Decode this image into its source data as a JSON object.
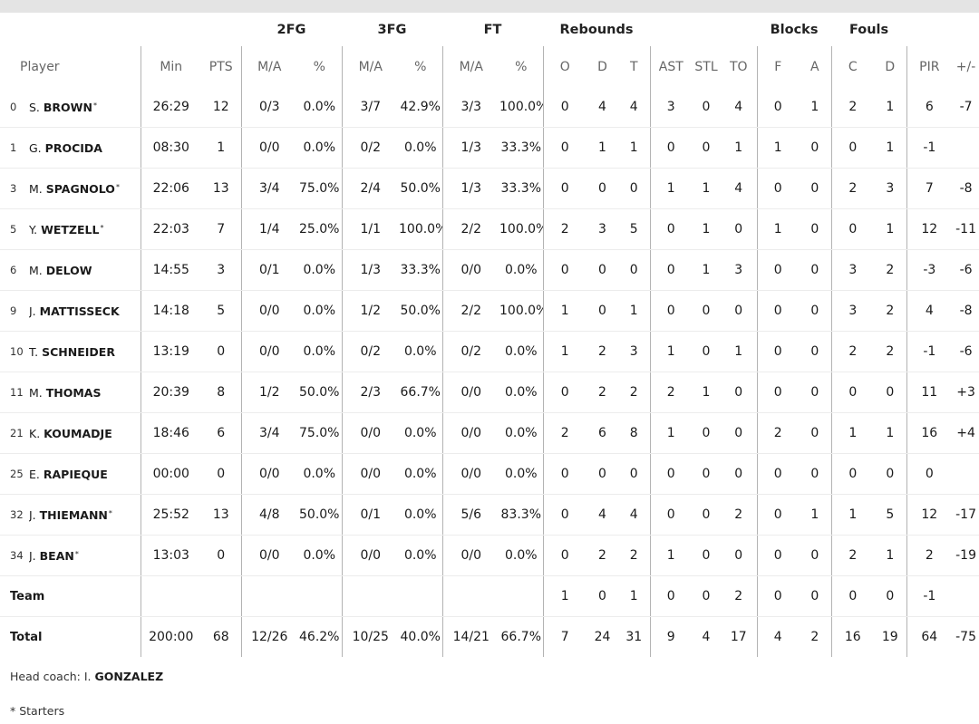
{
  "group_headers": {
    "fg2": "2FG",
    "fg3": "3FG",
    "ft": "FT",
    "rebounds": "Rebounds",
    "blocks": "Blocks",
    "fouls": "Fouls"
  },
  "column_headers": {
    "player": "Player",
    "min": "Min",
    "pts": "PTS",
    "fg2_ma": "M/A",
    "fg2_pct": "%",
    "fg3_ma": "M/A",
    "fg3_pct": "%",
    "ft_ma": "M/A",
    "ft_pct": "%",
    "reb_o": "O",
    "reb_d": "D",
    "reb_t": "T",
    "ast": "AST",
    "stl": "STL",
    "to": "TO",
    "blk_f": "F",
    "blk_a": "A",
    "foul_c": "C",
    "foul_d": "D",
    "pir": "PIR",
    "pm": "+/-"
  },
  "players": [
    {
      "no": "0",
      "initial": "S.",
      "last": "BROWN",
      "star": "*",
      "min": "26:29",
      "pts": "12",
      "fg2": "0/3",
      "fg2p": "0.0%",
      "fg3": "3/7",
      "fg3p": "42.9%",
      "ft": "3/3",
      "ftp": "100.0%",
      "ro": "0",
      "rd": "4",
      "rt": "4",
      "ast": "3",
      "stl": "0",
      "to": "4",
      "bf": "0",
      "ba": "1",
      "fc": "2",
      "fd": "1",
      "pir": "6",
      "pm": "-7"
    },
    {
      "no": "1",
      "initial": "G.",
      "last": "PROCIDA",
      "star": "",
      "min": "08:30",
      "pts": "1",
      "fg2": "0/0",
      "fg2p": "0.0%",
      "fg3": "0/2",
      "fg3p": "0.0%",
      "ft": "1/3",
      "ftp": "33.3%",
      "ro": "0",
      "rd": "1",
      "rt": "1",
      "ast": "0",
      "stl": "0",
      "to": "1",
      "bf": "1",
      "ba": "0",
      "fc": "0",
      "fd": "1",
      "pir": "-1",
      "pm": ""
    },
    {
      "no": "3",
      "initial": "M.",
      "last": "SPAGNOLO",
      "star": "*",
      "min": "22:06",
      "pts": "13",
      "fg2": "3/4",
      "fg2p": "75.0%",
      "fg3": "2/4",
      "fg3p": "50.0%",
      "ft": "1/3",
      "ftp": "33.3%",
      "ro": "0",
      "rd": "0",
      "rt": "0",
      "ast": "1",
      "stl": "1",
      "to": "4",
      "bf": "0",
      "ba": "0",
      "fc": "2",
      "fd": "3",
      "pir": "7",
      "pm": "-8"
    },
    {
      "no": "5",
      "initial": "Y.",
      "last": "WETZELL",
      "star": "*",
      "min": "22:03",
      "pts": "7",
      "fg2": "1/4",
      "fg2p": "25.0%",
      "fg3": "1/1",
      "fg3p": "100.0%",
      "ft": "2/2",
      "ftp": "100.0%",
      "ro": "2",
      "rd": "3",
      "rt": "5",
      "ast": "0",
      "stl": "1",
      "to": "0",
      "bf": "1",
      "ba": "0",
      "fc": "0",
      "fd": "1",
      "pir": "12",
      "pm": "-11"
    },
    {
      "no": "6",
      "initial": "M.",
      "last": "DELOW",
      "star": "",
      "min": "14:55",
      "pts": "3",
      "fg2": "0/1",
      "fg2p": "0.0%",
      "fg3": "1/3",
      "fg3p": "33.3%",
      "ft": "0/0",
      "ftp": "0.0%",
      "ro": "0",
      "rd": "0",
      "rt": "0",
      "ast": "0",
      "stl": "1",
      "to": "3",
      "bf": "0",
      "ba": "0",
      "fc": "3",
      "fd": "2",
      "pir": "-3",
      "pm": "-6"
    },
    {
      "no": "9",
      "initial": "J.",
      "last": "MATTISSECK",
      "star": "",
      "min": "14:18",
      "pts": "5",
      "fg2": "0/0",
      "fg2p": "0.0%",
      "fg3": "1/2",
      "fg3p": "50.0%",
      "ft": "2/2",
      "ftp": "100.0%",
      "ro": "1",
      "rd": "0",
      "rt": "1",
      "ast": "0",
      "stl": "0",
      "to": "0",
      "bf": "0",
      "ba": "0",
      "fc": "3",
      "fd": "2",
      "pir": "4",
      "pm": "-8"
    },
    {
      "no": "10",
      "initial": "T.",
      "last": "SCHNEIDER",
      "star": "",
      "min": "13:19",
      "pts": "0",
      "fg2": "0/0",
      "fg2p": "0.0%",
      "fg3": "0/2",
      "fg3p": "0.0%",
      "ft": "0/2",
      "ftp": "0.0%",
      "ro": "1",
      "rd": "2",
      "rt": "3",
      "ast": "1",
      "stl": "0",
      "to": "1",
      "bf": "0",
      "ba": "0",
      "fc": "2",
      "fd": "2",
      "pir": "-1",
      "pm": "-6"
    },
    {
      "no": "11",
      "initial": "M.",
      "last": "THOMAS",
      "star": "",
      "min": "20:39",
      "pts": "8",
      "fg2": "1/2",
      "fg2p": "50.0%",
      "fg3": "2/3",
      "fg3p": "66.7%",
      "ft": "0/0",
      "ftp": "0.0%",
      "ro": "0",
      "rd": "2",
      "rt": "2",
      "ast": "2",
      "stl": "1",
      "to": "0",
      "bf": "0",
      "ba": "0",
      "fc": "0",
      "fd": "0",
      "pir": "11",
      "pm": "+3"
    },
    {
      "no": "21",
      "initial": "K.",
      "last": "KOUMADJE",
      "star": "",
      "min": "18:46",
      "pts": "6",
      "fg2": "3/4",
      "fg2p": "75.0%",
      "fg3": "0/0",
      "fg3p": "0.0%",
      "ft": "0/0",
      "ftp": "0.0%",
      "ro": "2",
      "rd": "6",
      "rt": "8",
      "ast": "1",
      "stl": "0",
      "to": "0",
      "bf": "2",
      "ba": "0",
      "fc": "1",
      "fd": "1",
      "pir": "16",
      "pm": "+4"
    },
    {
      "no": "25",
      "initial": "E.",
      "last": "RAPIEQUE",
      "star": "",
      "min": "00:00",
      "pts": "0",
      "fg2": "0/0",
      "fg2p": "0.0%",
      "fg3": "0/0",
      "fg3p": "0.0%",
      "ft": "0/0",
      "ftp": "0.0%",
      "ro": "0",
      "rd": "0",
      "rt": "0",
      "ast": "0",
      "stl": "0",
      "to": "0",
      "bf": "0",
      "ba": "0",
      "fc": "0",
      "fd": "0",
      "pir": "0",
      "pm": ""
    },
    {
      "no": "32",
      "initial": "J.",
      "last": "THIEMANN",
      "star": "*",
      "min": "25:52",
      "pts": "13",
      "fg2": "4/8",
      "fg2p": "50.0%",
      "fg3": "0/1",
      "fg3p": "0.0%",
      "ft": "5/6",
      "ftp": "83.3%",
      "ro": "0",
      "rd": "4",
      "rt": "4",
      "ast": "0",
      "stl": "0",
      "to": "2",
      "bf": "0",
      "ba": "1",
      "fc": "1",
      "fd": "5",
      "pir": "12",
      "pm": "-17"
    },
    {
      "no": "34",
      "initial": "J.",
      "last": "BEAN",
      "star": "*",
      "min": "13:03",
      "pts": "0",
      "fg2": "0/0",
      "fg2p": "0.0%",
      "fg3": "0/0",
      "fg3p": "0.0%",
      "ft": "0/0",
      "ftp": "0.0%",
      "ro": "0",
      "rd": "2",
      "rt": "2",
      "ast": "1",
      "stl": "0",
      "to": "0",
      "bf": "0",
      "ba": "0",
      "fc": "2",
      "fd": "1",
      "pir": "2",
      "pm": "-19"
    }
  ],
  "team": {
    "label": "Team",
    "ro": "1",
    "rd": "0",
    "rt": "1",
    "ast": "0",
    "stl": "0",
    "to": "2",
    "bf": "0",
    "ba": "0",
    "fc": "0",
    "fd": "0",
    "pir": "-1"
  },
  "total": {
    "label": "Total",
    "min": "200:00",
    "pts": "68",
    "fg2": "12/26",
    "fg2p": "46.2%",
    "fg3": "10/25",
    "fg3p": "40.0%",
    "ft": "14/21",
    "ftp": "66.7%",
    "ro": "7",
    "rd": "24",
    "rt": "31",
    "ast": "9",
    "stl": "4",
    "to": "17",
    "bf": "4",
    "ba": "2",
    "fc": "16",
    "fd": "19",
    "pir": "64",
    "pm": "-75"
  },
  "footer": {
    "coach_label": "Head coach: ",
    "coach_initial": "I.",
    "coach_last": "GONZALEZ",
    "starters_note": "* Starters"
  }
}
